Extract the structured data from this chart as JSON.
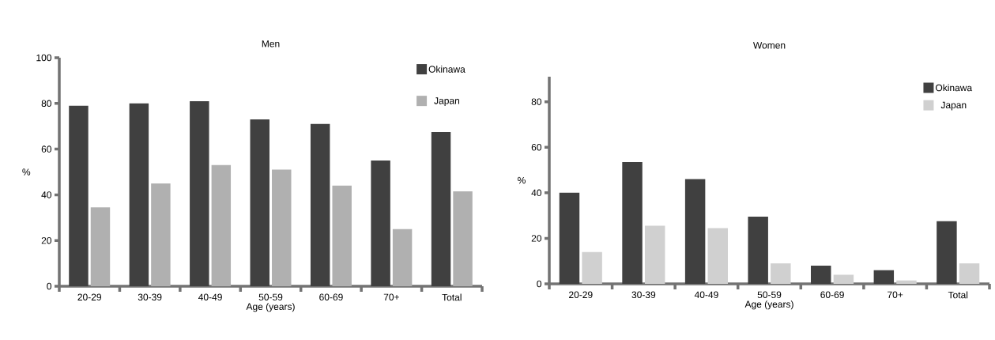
{
  "chart_data": [
    {
      "type": "bar",
      "title": "Men",
      "xlabel": "Age (years)",
      "ylabel": "%",
      "categories": [
        "20-29",
        "30-39",
        "40-49",
        "50-59",
        "60-69",
        "70+",
        "Total"
      ],
      "series": [
        {
          "name": "Okinawa",
          "color": "#404040",
          "values": [
            79,
            80,
            81,
            73,
            71,
            55,
            67.5
          ]
        },
        {
          "name": "Japan",
          "color": "#b0b0b0",
          "values": [
            34.5,
            45,
            53,
            51,
            44,
            25,
            41.5
          ]
        }
      ],
      "ylim": [
        0,
        100
      ],
      "yticks": [
        0,
        20,
        40,
        60,
        80,
        100
      ],
      "legend": "top right"
    },
    {
      "type": "bar",
      "title": "Women",
      "xlabel": "Age (years)",
      "ylabel": "%",
      "categories": [
        "20-29",
        "30-39",
        "40-49",
        "50-59",
        "60-69",
        "70+",
        "Total"
      ],
      "series": [
        {
          "name": "Okinawa",
          "color": "#404040",
          "values": [
            40,
            53.5,
            46,
            29.5,
            8,
            6,
            27.5
          ]
        },
        {
          "name": "Japan",
          "color": "#d0d0d0",
          "values": [
            14,
            25.5,
            24.5,
            9,
            4,
            1.5,
            9
          ]
        }
      ],
      "ylim": [
        0,
        91
      ],
      "yticks": [
        0,
        20,
        40,
        60,
        80
      ],
      "legend": "top right"
    }
  ]
}
